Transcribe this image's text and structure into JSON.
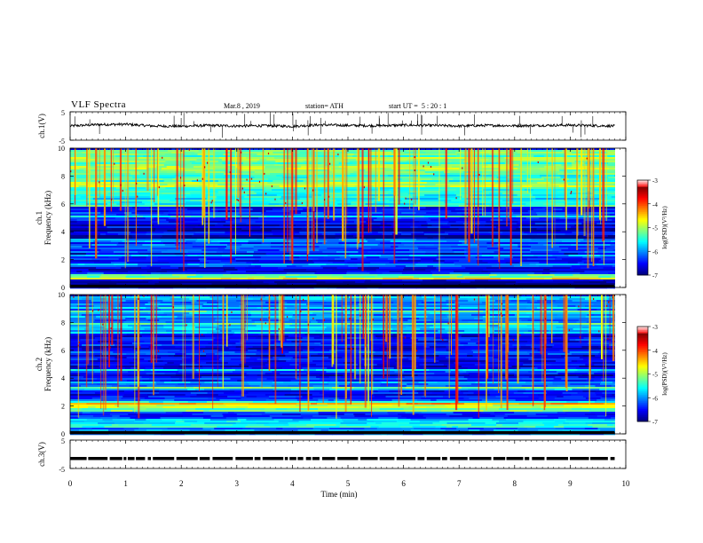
{
  "header": {
    "title": "VLF  Spectra",
    "date": "Mar.8  , 2019",
    "station": "station= ATH",
    "start_label": "start  UT  =",
    "start_time": "5  : 20 : 1"
  },
  "chart_data": [
    {
      "type": "line",
      "title": "",
      "ylabel": "ch.1(V)",
      "ylim": [
        -5,
        5
      ],
      "yticks": [
        "5",
        "-5"
      ],
      "description_series": "single waveform trace around slightly positive level with spikes",
      "x": [
        0,
        0.5,
        1,
        1.5,
        2,
        2.5,
        3,
        3.5,
        4,
        4.5,
        5,
        5.5,
        6,
        6.5,
        7,
        7.5,
        8,
        8.5,
        9,
        9.5,
        9.8
      ],
      "y": [
        0,
        0.5,
        0.6,
        0,
        -0.1,
        0.2,
        0,
        0.1,
        -0.1,
        0.4,
        0.2,
        0.1,
        0.3,
        0.2,
        0.0,
        0.2,
        0.1,
        0.2,
        0.3,
        0.1,
        0.0
      ],
      "xlim": [
        0,
        10
      ]
    },
    {
      "type": "heatmap",
      "ylabel": "ch.1\nFrequency  (kHz)",
      "ylabel_line1": "ch.1",
      "ylabel_line2": "Frequency  (kHz)",
      "yticks": [
        "0",
        "2",
        "4",
        "6",
        "8",
        "10"
      ],
      "ylim": [
        0,
        10
      ],
      "xlim": [
        0,
        10
      ],
      "data_end_min": 9.8,
      "colorbar": {
        "label": "log(PSD)(V²/Hz)",
        "ticks": [
          "-3",
          "-4",
          "-5",
          "-6",
          "-7"
        ],
        "range": [
          -7,
          -3
        ]
      },
      "bands": [
        {
          "f": [
            0,
            0.3
          ],
          "level": -6.2
        },
        {
          "f": [
            0.3,
            0.6
          ],
          "level": -6.8
        },
        {
          "f": [
            0.6,
            1.0
          ],
          "level": -5.0
        },
        {
          "f": [
            1.0,
            2.6
          ],
          "level": -6.4
        },
        {
          "f": [
            2.6,
            3.6
          ],
          "level": -6.2
        },
        {
          "f": [
            3.6,
            4.8
          ],
          "level": -6.7
        },
        {
          "f": [
            4.8,
            5.8
          ],
          "level": -6.3
        },
        {
          "f": [
            5.8,
            7.2
          ],
          "level": -5.4
        },
        {
          "f": [
            7.2,
            10.0
          ],
          "level": -5.1
        }
      ]
    },
    {
      "type": "heatmap",
      "ylabel": "ch.2\nFrequency  (kHz)",
      "ylabel_line1": "ch.2",
      "ylabel_line2": "Frequency  (kHz)",
      "yticks": [
        "0",
        "2",
        "4",
        "6",
        "8",
        "10"
      ],
      "ylim": [
        0,
        10
      ],
      "xlim": [
        0,
        10
      ],
      "data_end_min": 9.8,
      "colorbar": {
        "label": "log(PSD)(V²/Hz)",
        "ticks": [
          "-3",
          "-4",
          "-5",
          "-6",
          "-7"
        ],
        "range": [
          -7,
          -3
        ]
      },
      "bands": [
        {
          "f": [
            0,
            0.5
          ],
          "level": -6.0
        },
        {
          "f": [
            0.5,
            1.1
          ],
          "level": -5.6
        },
        {
          "f": [
            1.1,
            1.6
          ],
          "level": -6.3
        },
        {
          "f": [
            1.6,
            2.3
          ],
          "level": -4.9
        },
        {
          "f": [
            2.3,
            3.2
          ],
          "level": -6.4
        },
        {
          "f": [
            3.2,
            3.8
          ],
          "level": -5.8
        },
        {
          "f": [
            3.8,
            7.2
          ],
          "level": -6.5
        },
        {
          "f": [
            7.2,
            10.0
          ],
          "level": -5.9
        }
      ]
    },
    {
      "type": "line",
      "ylabel": "ch.3(V)",
      "ylim": [
        -5,
        5
      ],
      "yticks": [
        "5",
        "-5"
      ],
      "xlim": [
        0,
        10
      ],
      "x": [
        0,
        9.8
      ],
      "y": [
        -1.5,
        -1.5
      ]
    }
  ],
  "xaxis": {
    "label": "Time  (min)",
    "ticks": [
      "0",
      "1",
      "2",
      "3",
      "4",
      "5",
      "6",
      "7",
      "8",
      "9",
      "10"
    ]
  },
  "colors": {
    "trace": "#000000",
    "axis": "#000000",
    "background": "#ffffff"
  }
}
